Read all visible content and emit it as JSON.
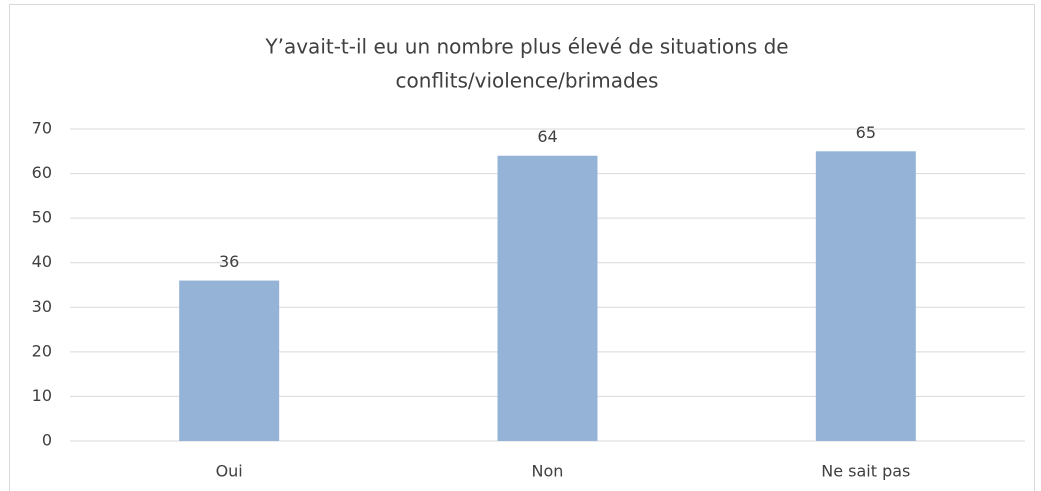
{
  "chart_data": {
    "type": "bar",
    "title": [
      "Y’avait-t-il eu un nombre plus élevé de situations de",
      "conflits/violence/brimades"
    ],
    "categories": [
      "Oui",
      "Non",
      "Ne sait pas"
    ],
    "values": [
      36,
      64,
      65
    ],
    "color": "#95b3d7",
    "ylim": [
      0,
      70
    ],
    "yticks": [
      0,
      10,
      20,
      30,
      40,
      50,
      60,
      70
    ],
    "grid": true
  }
}
